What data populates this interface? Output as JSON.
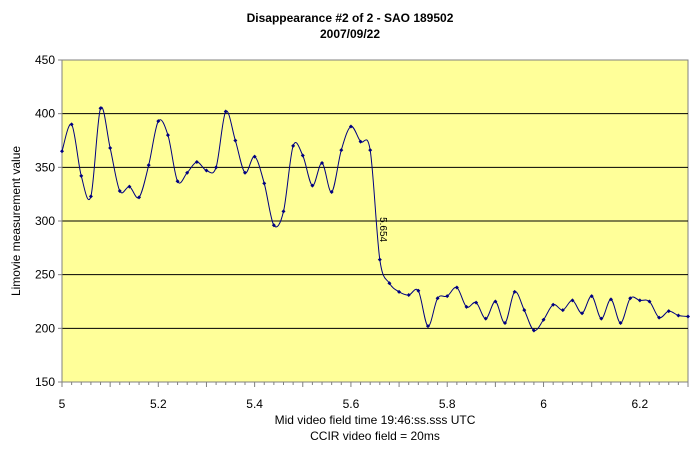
{
  "chart_data": {
    "type": "line",
    "title": "Disappearance #2 of 2 - SAO 189502",
    "subtitle": "2007/09/22",
    "xlabel": "Mid video field time 19:46:ss.sss UTC",
    "xlabel2": "CCIR video field = 20ms",
    "ylabel": "Limovie measurement value",
    "xlim": [
      5.0,
      6.3
    ],
    "ylim": [
      150,
      450
    ],
    "x_ticks": [
      5.0,
      5.2,
      5.4,
      5.6,
      5.8,
      6.0,
      6.2
    ],
    "x_tick_labels": [
      "5",
      "5.2",
      "5.4",
      "5.6",
      "5.8",
      "6",
      "6.2"
    ],
    "y_ticks": [
      150,
      200,
      250,
      300,
      350,
      400,
      450
    ],
    "y_tick_labels": [
      "150",
      "200",
      "250",
      "300",
      "350",
      "400",
      "450"
    ],
    "grid": "horizontal",
    "plot_background": "#ffff99",
    "line_color": "#000080",
    "annotation": {
      "text": "5.654",
      "x": 5.654,
      "y": 264
    },
    "x": [
      5.0,
      5.02,
      5.04,
      5.06,
      5.08,
      5.1,
      5.12,
      5.14,
      5.16,
      5.18,
      5.2,
      5.22,
      5.24,
      5.26,
      5.28,
      5.3,
      5.32,
      5.34,
      5.36,
      5.38,
      5.4,
      5.42,
      5.44,
      5.46,
      5.48,
      5.5,
      5.52,
      5.54,
      5.56,
      5.58,
      5.6,
      5.62,
      5.64,
      5.66,
      5.68,
      5.7,
      5.72,
      5.74,
      5.76,
      5.78,
      5.8,
      5.82,
      5.84,
      5.86,
      5.88,
      5.9,
      5.92,
      5.94,
      5.96,
      5.98,
      6.0,
      6.02,
      6.04,
      6.06,
      6.08,
      6.1,
      6.12,
      6.14,
      6.16,
      6.18,
      6.2,
      6.22,
      6.24,
      6.26,
      6.28,
      6.3
    ],
    "y": [
      365,
      390,
      342,
      323,
      405,
      368,
      328,
      332,
      322,
      352,
      393,
      380,
      337,
      345,
      355,
      347,
      350,
      402,
      375,
      345,
      360,
      335,
      296,
      309,
      370,
      361,
      333,
      354,
      327,
      366,
      388,
      374,
      366,
      264,
      242,
      234,
      231,
      235,
      202,
      228,
      230,
      238,
      220,
      224,
      209,
      225,
      205,
      234,
      217,
      198,
      208,
      222,
      217,
      226,
      214,
      230,
      209,
      227,
      205,
      228,
      226,
      225,
      210,
      216,
      212,
      211
    ]
  }
}
